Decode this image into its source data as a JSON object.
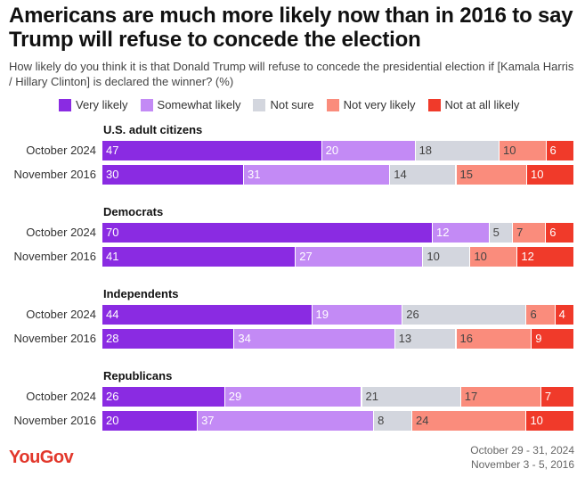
{
  "title": "Americans are much more likely now than in 2016 to say Trump will refuse to concede the election",
  "subtitle": "How likely do you think it is that Donald Trump will refuse to concede the presidential election if [Kamala Harris / Hillary Clinton] is declared the winner? (%)",
  "logo": "YouGov",
  "dates": [
    "October 29 - 31, 2024",
    "November 3 - 5, 2016"
  ],
  "chart_data": {
    "type": "bar",
    "stacked": true,
    "orientation": "horizontal",
    "title": "Americans are much more likely now than in 2016 to say Trump will refuse to concede the election",
    "legend_position": "top",
    "series": [
      {
        "name": "Very likely",
        "color": "#8a2be2",
        "text_color": "#ffffff"
      },
      {
        "name": "Somewhat likely",
        "color": "#c38af5",
        "text_color": "#ffffff"
      },
      {
        "name": "Not sure",
        "color": "#d3d6de",
        "text_color": "#444444"
      },
      {
        "name": "Not very likely",
        "color": "#fa8c7c",
        "text_color": "#444444"
      },
      {
        "name": "Not at all likely",
        "color": "#f03a2a",
        "text_color": "#ffffff"
      }
    ],
    "groups": [
      {
        "name": "U.S. adult citizens",
        "rows": [
          {
            "label": "October 2024",
            "values": [
              47,
              20,
              18,
              10,
              6
            ]
          },
          {
            "label": "November 2016",
            "values": [
              30,
              31,
              14,
              15,
              10
            ]
          }
        ]
      },
      {
        "name": "Democrats",
        "rows": [
          {
            "label": "October 2024",
            "values": [
              70,
              12,
              5,
              7,
              6
            ]
          },
          {
            "label": "November 2016",
            "values": [
              41,
              27,
              10,
              10,
              12
            ]
          }
        ]
      },
      {
        "name": "Independents",
        "rows": [
          {
            "label": "October 2024",
            "values": [
              44,
              19,
              26,
              6,
              4
            ]
          },
          {
            "label": "November 2016",
            "values": [
              28,
              34,
              13,
              16,
              9
            ]
          }
        ]
      },
      {
        "name": "Republicans",
        "rows": [
          {
            "label": "October 2024",
            "values": [
              26,
              29,
              21,
              17,
              7
            ]
          },
          {
            "label": "November 2016",
            "values": [
              20,
              37,
              8,
              24,
              10
            ]
          }
        ]
      }
    ]
  }
}
